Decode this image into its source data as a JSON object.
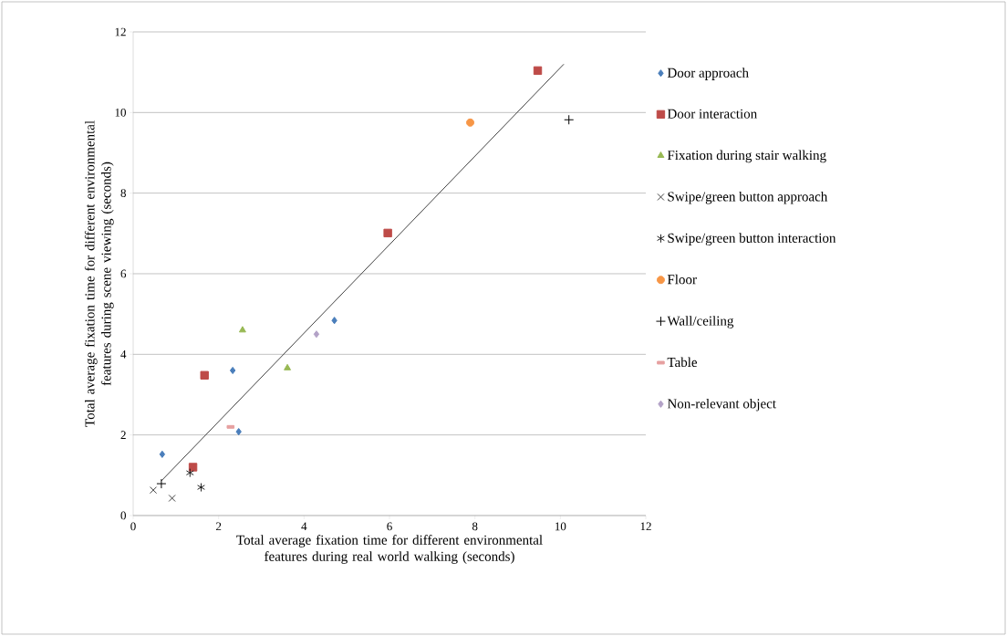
{
  "chart_data": {
    "type": "scatter",
    "xlabel": "Total average fixation time for different environmental features during real world walking (seconds)",
    "ylabel": "Total average fixation time for different environmental features during scene viewing (seconds)",
    "xlim": [
      0,
      12
    ],
    "ylim": [
      0,
      12
    ],
    "xticks": [
      0,
      2,
      4,
      6,
      8,
      10,
      12
    ],
    "yticks": [
      0,
      2,
      4,
      6,
      8,
      10,
      12
    ],
    "grid": "y",
    "legend": "right",
    "series": [
      {
        "name": "Door approach",
        "color": "#4a7ebb",
        "marker": "diamond",
        "x": [
          0.68,
          2.33,
          2.47,
          4.71
        ],
        "values": [
          1.52,
          3.6,
          2.08,
          4.84
        ]
      },
      {
        "name": "Door interaction",
        "color": "#be4b48",
        "marker": "square",
        "x": [
          1.67,
          1.4,
          5.96,
          9.47
        ],
        "values": [
          3.48,
          1.2,
          7.01,
          11.04
        ]
      },
      {
        "name": "Fixation during stair walking",
        "color": "#98b954",
        "marker": "triangle",
        "x": [
          2.56,
          3.61
        ],
        "values": [
          4.6,
          3.66
        ]
      },
      {
        "name": "Swipe/green button approach",
        "color": "#404040",
        "marker": "cross",
        "x": [
          0.47,
          0.91
        ],
        "values": [
          0.63,
          0.43
        ]
      },
      {
        "name": "Swipe/green button interaction",
        "color": "#202020",
        "x": [
          1.33,
          1.59
        ],
        "values": [
          1.06,
          0.7
        ]
      },
      {
        "name": "Floor",
        "color": "#f79646",
        "marker": "circle",
        "x": [
          7.89
        ],
        "values": [
          9.75
        ]
      },
      {
        "name": "Wall/ceiling",
        "color": "#000000",
        "marker": "plus",
        "x": [
          10.2,
          0.66
        ],
        "values": [
          9.82,
          0.79
        ]
      },
      {
        "name": "Table",
        "color": "#e6a0a0",
        "marker": "square",
        "x": [
          2.28
        ],
        "values": [
          2.2
        ]
      },
      {
        "name": "Non-relevant object",
        "color": "#b3a2c7",
        "marker": "diamond",
        "x": [
          4.29
        ],
        "values": [
          4.5
        ]
      },
      {
        "type": "line",
        "color": "#404040",
        "marker": "none",
        "x": [
          0.66,
          10.08
        ],
        "values": [
          0.86,
          11.2
        ]
      }
    ]
  }
}
